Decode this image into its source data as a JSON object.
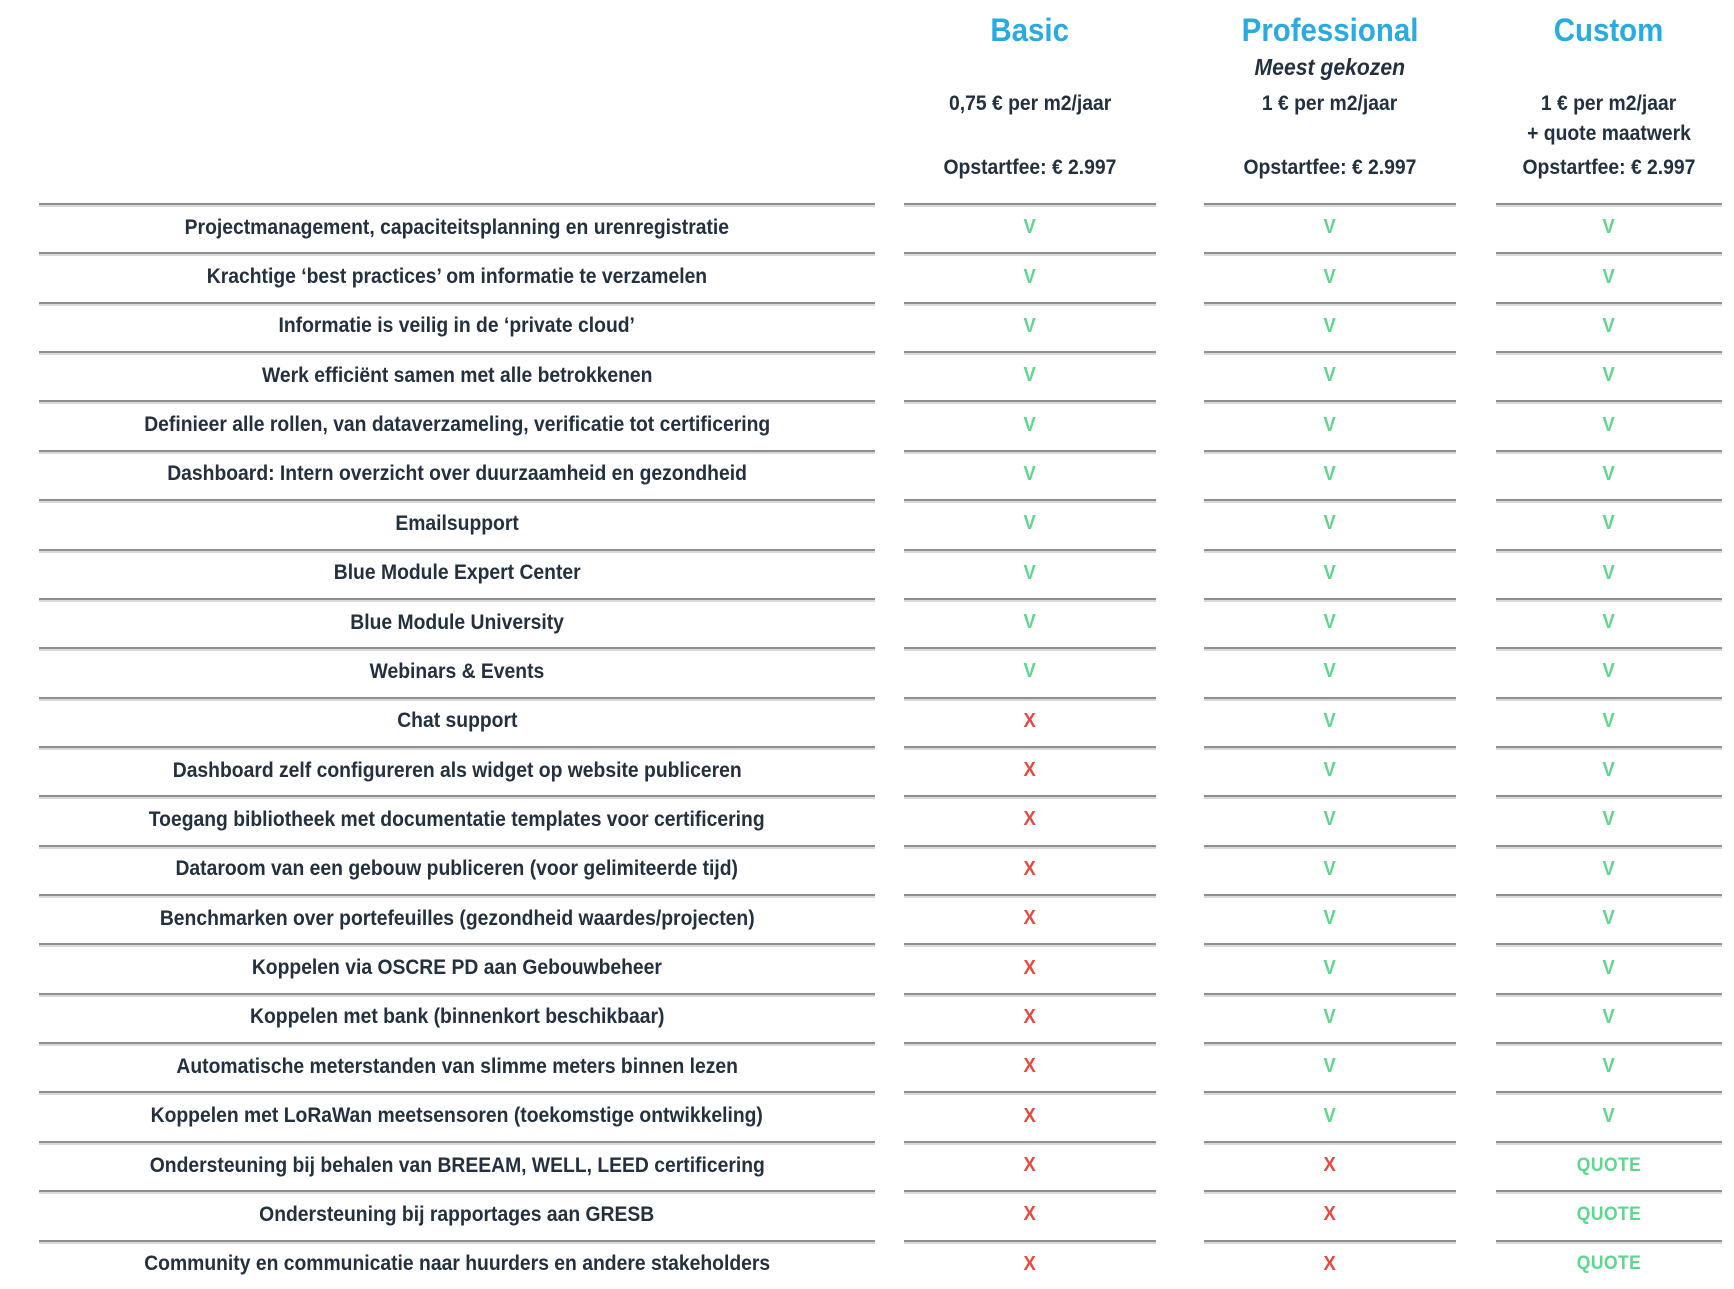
{
  "colors": {
    "accent_cyan": "#29abe2",
    "text_navy": "#22303f",
    "check_green": "#5dd78e",
    "cross_red": "#e8483d",
    "divider_gray": "#8f8f8f"
  },
  "plans": [
    {
      "name": "Basic",
      "tagline": "",
      "price_lines": [
        "0,75 € per m2/jaar"
      ],
      "fee": "Opstartfee: € 2.997"
    },
    {
      "name": "Professional",
      "tagline": "Meest gekozen",
      "price_lines": [
        "1 € per m2/jaar"
      ],
      "fee": "Opstartfee: € 2.997"
    },
    {
      "name": "Custom",
      "tagline": "",
      "price_lines": [
        "1 € per m2/jaar",
        "+ quote maatwerk"
      ],
      "fee": "Opstartfee: € 2.997"
    }
  ],
  "features": [
    {
      "label": "Projectmanagement, capaciteitsplanning en urenregistratie",
      "basic": "V",
      "professional": "V",
      "custom": "V"
    },
    {
      "label": "Krachtige ‘best practices’ om informatie te verzamelen",
      "basic": "V",
      "professional": "V",
      "custom": "V"
    },
    {
      "label": "Informatie is veilig in de ‘private cloud’",
      "basic": "V",
      "professional": "V",
      "custom": "V"
    },
    {
      "label": "Werk efficiënt samen met alle betrokkenen",
      "basic": "V",
      "professional": "V",
      "custom": "V"
    },
    {
      "label": "Definieer alle rollen, van dataverzameling, verificatie tot certificering",
      "basic": "V",
      "professional": "V",
      "custom": "V"
    },
    {
      "label": "Dashboard: Intern overzicht over duurzaamheid en gezondheid",
      "basic": "V",
      "professional": "V",
      "custom": "V"
    },
    {
      "label": "Emailsupport",
      "basic": "V",
      "professional": "V",
      "custom": "V"
    },
    {
      "label": "Blue Module Expert Center",
      "basic": "V",
      "professional": "V",
      "custom": "V"
    },
    {
      "label": "Blue Module University",
      "basic": "V",
      "professional": "V",
      "custom": "V"
    },
    {
      "label": "Webinars & Events",
      "basic": "V",
      "professional": "V",
      "custom": "V"
    },
    {
      "label": "Chat support",
      "basic": "X",
      "professional": "V",
      "custom": "V"
    },
    {
      "label": "Dashboard zelf configureren als widget op website publiceren",
      "basic": "X",
      "professional": "V",
      "custom": "V"
    },
    {
      "label": "Toegang bibliotheek met documentatie templates voor certificering",
      "basic": "X",
      "professional": "V",
      "custom": "V"
    },
    {
      "label": "Dataroom van een gebouw publiceren (voor gelimiteerde tijd)",
      "basic": "X",
      "professional": "V",
      "custom": "V"
    },
    {
      "label": "Benchmarken over portefeuilles (gezondheid waardes/projecten)",
      "basic": "X",
      "professional": "V",
      "custom": "V"
    },
    {
      "label": "Koppelen via OSCRE PD aan Gebouwbeheer",
      "basic": "X",
      "professional": "V",
      "custom": "V"
    },
    {
      "label": "Koppelen met bank (binnenkort beschikbaar)",
      "basic": "X",
      "professional": "V",
      "custom": "V"
    },
    {
      "label": "Automatische meterstanden van slimme meters binnen lezen",
      "basic": "X",
      "professional": "V",
      "custom": "V"
    },
    {
      "label": "Koppelen met LoRaWan meetsensoren (toekomstige ontwikkeling)",
      "basic": "X",
      "professional": "V",
      "custom": "V"
    },
    {
      "label": "Ondersteuning bij behalen van BREEAM, WELL, LEED certificering",
      "basic": "X",
      "professional": "X",
      "custom": "QUOTE"
    },
    {
      "label": "Ondersteuning bij rapportages aan GRESB",
      "basic": "X",
      "professional": "X",
      "custom": "QUOTE"
    },
    {
      "label": "Community en communicatie naar huurders en andere stakeholders",
      "basic": "X",
      "professional": "X",
      "custom": "QUOTE"
    }
  ]
}
